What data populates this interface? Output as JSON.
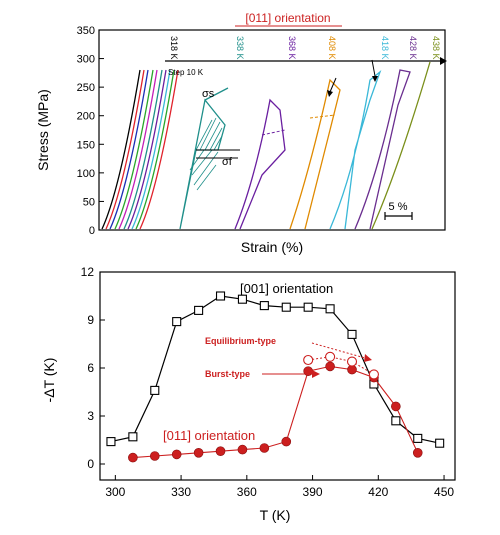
{
  "colors": {
    "axis": "#000000",
    "title_red": "#cc2222",
    "black_series": "#000000",
    "red_series": "#cc1f1f",
    "arrow": "#000000",
    "curve_palette": [
      "#000000",
      "#e0232c",
      "#1b2fb5",
      "#2aa52a",
      "#c21fb8",
      "#1f8f8a",
      "#6a1fa0",
      "#e08a00",
      "#3ab8d8",
      "#6a2e8f",
      "#7a8f1a"
    ]
  },
  "chart_data": [
    {
      "type": "line",
      "title": "[011] orientation",
      "xlabel": "Strain (%)",
      "ylabel": "Stress (MPa)",
      "ylim": [
        0,
        350
      ],
      "yticks": [
        0,
        50,
        100,
        150,
        200,
        250,
        300,
        350
      ],
      "grid": false,
      "step_label": "Step 10 K",
      "scale_bar_label": "5 %",
      "stress_labels": [
        "σs",
        "σf"
      ],
      "series": [
        {
          "name": "318 K",
          "color": "#000000"
        },
        {
          "name": "338 K",
          "color": "#1f8f8a"
        },
        {
          "name": "368 K",
          "color": "#6a1fa0"
        },
        {
          "name": "408 K",
          "color": "#e08a00"
        },
        {
          "name": "418 K",
          "color": "#3ab8d8"
        },
        {
          "name": "428 K",
          "color": "#6a2e8f"
        },
        {
          "name": "438 K",
          "color": "#7a8f1a"
        }
      ],
      "temperature_labels": [
        "318 K",
        "338 K",
        "368 K",
        "408 K",
        "418 K",
        "428 K",
        "438 K"
      ]
    },
    {
      "type": "line",
      "title": "",
      "xlabel": "T (K)",
      "ylabel": "-ΔT (K)",
      "xlim": [
        293,
        455
      ],
      "ylim": [
        -1,
        12
      ],
      "xticks": [
        300,
        330,
        360,
        390,
        420,
        450
      ],
      "yticks": [
        0,
        3,
        6,
        9,
        12
      ],
      "grid": false,
      "series": [
        {
          "name": "[001] orientation",
          "marker": "open-square",
          "x": [
            298,
            308,
            318,
            328,
            338,
            348,
            358,
            368,
            378,
            388,
            398,
            408,
            418,
            428,
            438,
            448
          ],
          "y": [
            1.4,
            1.7,
            4.6,
            8.9,
            9.6,
            10.5,
            10.3,
            9.9,
            9.8,
            9.8,
            9.7,
            8.1,
            5.0,
            2.7,
            1.6,
            1.3
          ]
        },
        {
          "name": "[011] orientation",
          "marker": "filled-circle",
          "x": [
            308,
            318,
            328,
            338,
            348,
            358,
            368,
            378,
            388,
            398,
            408,
            418,
            428,
            438
          ],
          "y": [
            0.4,
            0.5,
            0.6,
            0.7,
            0.8,
            0.9,
            1.0,
            1.4,
            5.8,
            6.1,
            5.9,
            5.4,
            3.6,
            0.7
          ]
        },
        {
          "name": "Equilibrium-type",
          "marker": "open-circle",
          "x": [
            388,
            398,
            408,
            418
          ],
          "y": [
            6.5,
            6.7,
            6.4,
            5.6
          ]
        }
      ],
      "annotations": [
        "Equilibrium-type",
        "Burst-type"
      ]
    }
  ]
}
